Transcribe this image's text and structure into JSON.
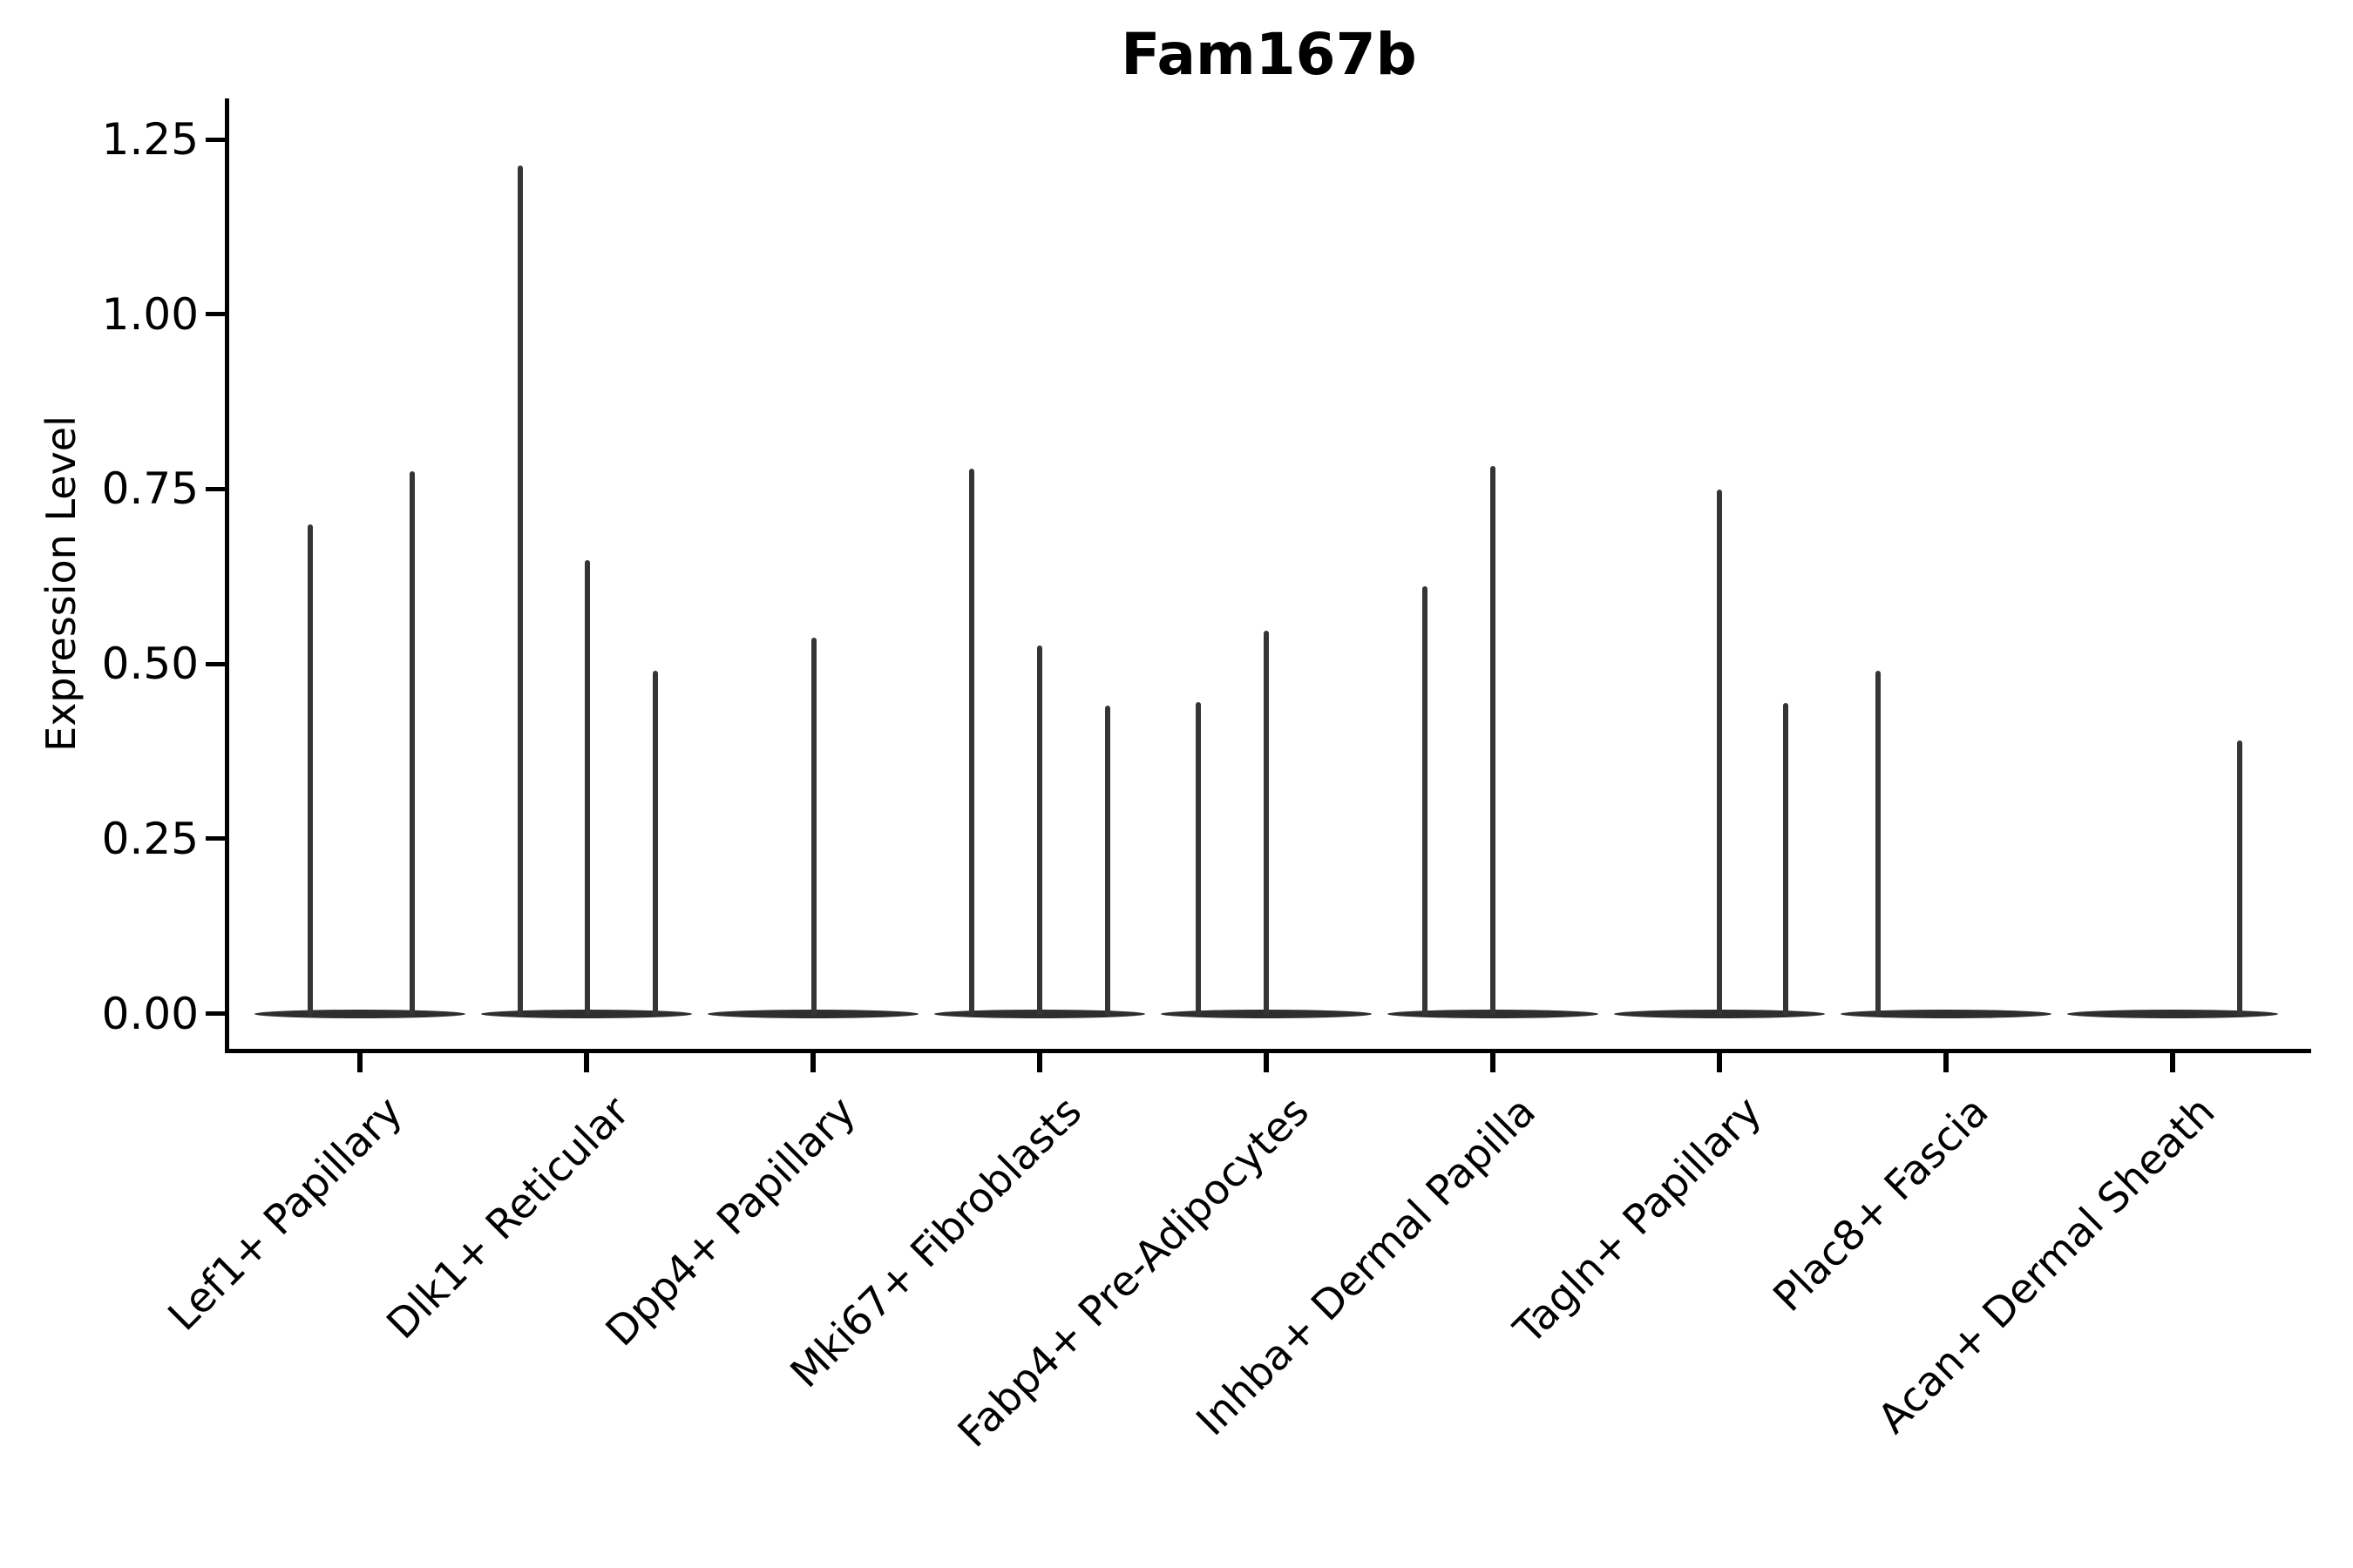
{
  "title": "Fam167b",
  "colors": {
    "background": "#ffffff",
    "axis": "#000000",
    "text": "#000000",
    "violin_body": "#2e2e2e",
    "violin_spike": "#353535"
  },
  "chart_data": {
    "type": "violin",
    "title": "Fam167b",
    "xlabel": "",
    "ylabel": "Expression Level",
    "grid": false,
    "legend": "none",
    "ylim": [
      -0.06,
      1.3
    ],
    "yticks": [
      "0.00",
      "0.25",
      "0.50",
      "0.75",
      "1.00",
      "1.25"
    ],
    "categories": [
      "Lef1+ Papillary",
      "Dlk1+ Reticular",
      "Dpp4+ Papillary",
      "Mki67+ Fibroblasts",
      "Fabp4+ Pre-Adipocytes",
      "Inhba+ Dermal Papilla",
      "Tagln+ Papillary",
      "Plac8+ Fascia",
      "Acan+ Dermal Sheath"
    ],
    "violins": [
      {
        "label": "Lef1+ Papillary",
        "baseline": 0.0,
        "spikes": [
          {
            "dx": -57,
            "peak": 0.7
          },
          {
            "dx": 60,
            "peak": 0.775
          }
        ]
      },
      {
        "label": "Dlk1+ Reticular",
        "baseline": 0.0,
        "spikes": [
          {
            "dx": -76,
            "peak": 1.213
          },
          {
            "dx": 1,
            "peak": 0.648
          },
          {
            "dx": 79,
            "peak": 0.49
          }
        ]
      },
      {
        "label": "Dpp4+ Papillary",
        "baseline": 0.0,
        "spikes": [
          {
            "dx": 1,
            "peak": 0.538
          }
        ]
      },
      {
        "label": "Mki67+ Fibroblasts",
        "baseline": 0.0,
        "spikes": [
          {
            "dx": -78,
            "peak": 0.779
          },
          {
            "dx": 0,
            "peak": 0.526
          },
          {
            "dx": 78,
            "peak": 0.44
          }
        ]
      },
      {
        "label": "Fabp4+ Pre-Adipocytes",
        "baseline": 0.0,
        "spikes": [
          {
            "dx": -78,
            "peak": 0.445
          },
          {
            "dx": 0,
            "peak": 0.548
          }
        ]
      },
      {
        "label": "Inhba+ Dermal Papilla",
        "baseline": 0.0,
        "spikes": [
          {
            "dx": -78,
            "peak": 0.611
          },
          {
            "dx": 0,
            "peak": 0.783
          }
        ]
      },
      {
        "label": "Tagln+ Papillary",
        "baseline": 0.0,
        "spikes": [
          {
            "dx": 0,
            "peak": 0.749
          },
          {
            "dx": 76,
            "peak": 0.444
          }
        ]
      },
      {
        "label": "Plac8+ Fascia",
        "baseline": 0.0,
        "spikes": [
          {
            "dx": -78,
            "peak": 0.49
          }
        ]
      },
      {
        "label": "Acan+ Dermal Sheath",
        "baseline": 0.0,
        "spikes": [
          {
            "dx": 77,
            "peak": 0.39
          }
        ]
      }
    ]
  }
}
